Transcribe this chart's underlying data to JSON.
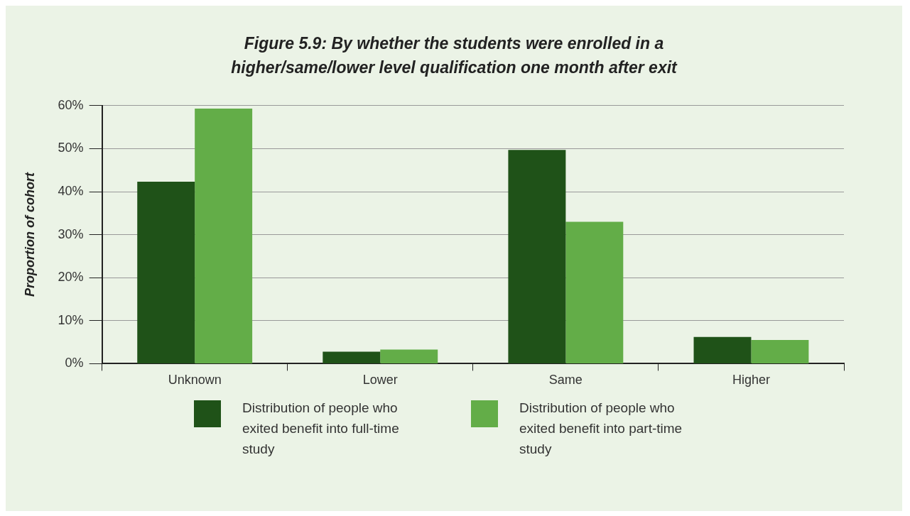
{
  "chart_data": {
    "type": "bar",
    "title": "Figure 5.9: By whether the students were enrolled in a higher/same/lower level qualification one month after exit",
    "ylabel": "Proportion of cohort",
    "categories": [
      "Unknown",
      "Lower",
      "Same",
      "Higher"
    ],
    "series": [
      {
        "name": "Distribution of people who exited benefit into full-time study",
        "color": "#1f5218",
        "values": [
          42.3,
          2.8,
          49.7,
          6.2
        ]
      },
      {
        "name": "Distribution of people who exited benefit into part-time study",
        "color": "#63ad48",
        "values": [
          59.3,
          3.3,
          33.0,
          5.5
        ]
      }
    ],
    "ylim": [
      0,
      60
    ],
    "yticks": [
      {
        "value": 0,
        "label": "0%"
      },
      {
        "value": 10,
        "label": "10%"
      },
      {
        "value": 20,
        "label": "20%"
      },
      {
        "value": 30,
        "label": "30%"
      },
      {
        "value": 40,
        "label": "40%"
      },
      {
        "value": 50,
        "label": "50%"
      },
      {
        "value": 60,
        "label": "60%"
      }
    ],
    "grid": "y",
    "legend": "bottom"
  }
}
